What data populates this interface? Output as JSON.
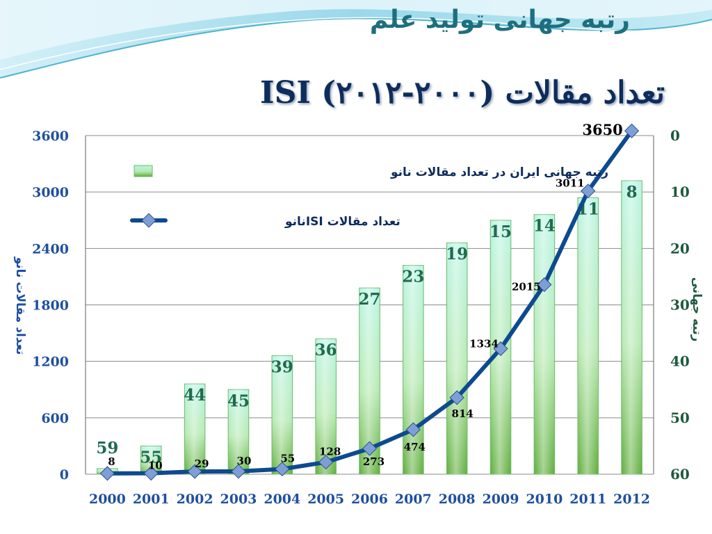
{
  "slide": {
    "heading_top": "رتبه جهانی تولید علم",
    "heading_main": "تعداد مقالات ISI (۲۰۱۲-۲۰۰۰)"
  },
  "colors": {
    "bar_top": "#b9f5e4",
    "bar_bottom": "#5fae3b",
    "line": "#0d4a8f",
    "marker": "#7e9fd6",
    "left_axis": "#1f4fa0",
    "right_axis": "#1d5a3e"
  },
  "chart_data": {
    "type": "bar",
    "categories": [
      "2000",
      "2001",
      "2002",
      "2003",
      "2004",
      "2005",
      "2006",
      "2007",
      "2008",
      "2009",
      "2010",
      "2011",
      "2012"
    ],
    "series": [
      {
        "name": "رتبه جهانی ایران در تعداد مقالات نانو",
        "type": "bar",
        "axis": "right",
        "values": [
          59,
          55,
          44,
          45,
          39,
          36,
          27,
          23,
          19,
          15,
          14,
          11,
          8
        ]
      },
      {
        "name": "تعداد مقالات  ISIنانو",
        "type": "line",
        "axis": "left",
        "values": [
          8,
          10,
          29,
          30,
          55,
          128,
          273,
          474,
          814,
          1334,
          2015,
          3011,
          3650
        ]
      }
    ],
    "ylabel": "تعداد مقالات نانو",
    "ylabel_right": "رتبه جهانی",
    "ylim": [
      0,
      3600
    ],
    "ylim_right": [
      0,
      60
    ],
    "right_axis_inverted": true,
    "yticks": [
      "0",
      "600",
      "1200",
      "1800",
      "2400",
      "3000",
      "3600"
    ],
    "yticks_right": [
      "0",
      "10",
      "20",
      "30",
      "40",
      "50",
      "60"
    ],
    "grid": "horizontal",
    "legend": "top-left"
  }
}
